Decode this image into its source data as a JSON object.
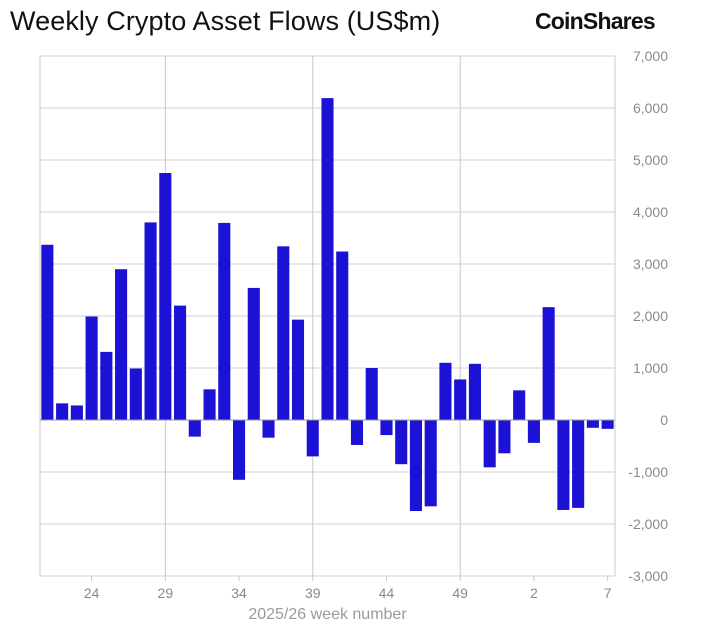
{
  "title": "Weekly Crypto Asset Flows (US$m)",
  "logo": "CoinShares",
  "chart_data": {
    "type": "bar",
    "title": "Weekly Crypto Asset Flows (US$m)",
    "xlabel": "2025/26 week number",
    "ylabel": "",
    "ylim": [
      -3000,
      7000
    ],
    "yticks": [
      7000,
      6000,
      5000,
      4000,
      3000,
      2000,
      1000,
      0,
      -1000,
      -2000,
      -3000
    ],
    "ytick_labels": [
      "7,000",
      "6,000",
      "5,000",
      "4,000",
      "3,000",
      "2,000",
      "1,000",
      "0",
      "-1,000",
      "-2,000",
      "-3,000"
    ],
    "y_axis_side": "right",
    "grid": true,
    "bar_color": "#1c12d6",
    "xtick_labels": [
      {
        "label": "24",
        "at_index": 3
      },
      {
        "label": "29",
        "at_index": 8
      },
      {
        "label": "34",
        "at_index": 13
      },
      {
        "label": "39",
        "at_index": 18
      },
      {
        "label": "44",
        "at_index": 23
      },
      {
        "label": "49",
        "at_index": 28
      },
      {
        "label": "2",
        "at_index": 33
      },
      {
        "label": "7",
        "at_index": 38
      }
    ],
    "vertical_gridlines_at_index": [
      8.5,
      18.5,
      28.5
    ],
    "categories": [
      "21",
      "22",
      "23",
      "24",
      "25",
      "26",
      "27",
      "28",
      "29",
      "30",
      "31",
      "32",
      "33",
      "34",
      "35",
      "36",
      "37",
      "38",
      "39",
      "40",
      "41",
      "42",
      "43",
      "44",
      "45",
      "46",
      "47",
      "48",
      "49",
      "50",
      "51",
      "52",
      "1",
      "2",
      "3",
      "4",
      "5",
      "6",
      "7"
    ],
    "values": [
      3370,
      320,
      280,
      1990,
      1310,
      2900,
      990,
      3800,
      4750,
      2200,
      -320,
      590,
      3790,
      -1150,
      2540,
      -340,
      3340,
      1930,
      -700,
      6190,
      3240,
      -480,
      1000,
      -290,
      -850,
      -1750,
      -1660,
      1100,
      780,
      1080,
      -910,
      -640,
      570,
      -440,
      2170,
      -1730,
      -1690,
      -150,
      -170
    ]
  }
}
